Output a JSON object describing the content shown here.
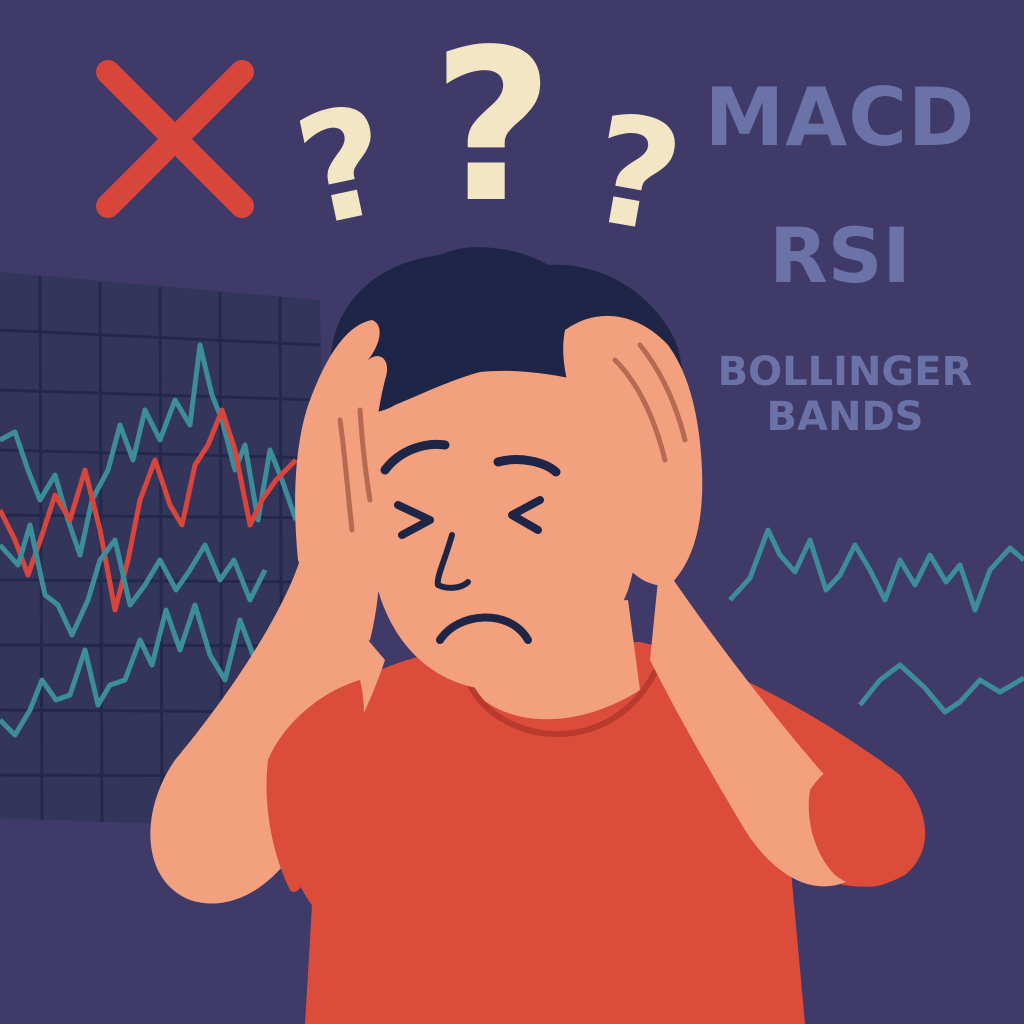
{
  "indicators": {
    "macd": "MACD",
    "rsi": "RSI",
    "bollinger_line1": "BOLLINGER",
    "bollinger_line2": "BANDS"
  },
  "question_marks": [
    "?",
    "?",
    "?"
  ],
  "colors": {
    "background": "#3f3a68",
    "indicator_text": "#6b72a8",
    "question_mark": "#f3e6c4",
    "x_mark": "#d8453b",
    "chart_teal": "#3d8c99",
    "chart_red": "#d8453b",
    "grid_bg": "#34355a",
    "grid_line": "#24284a",
    "skin": "#f2a07e",
    "hair": "#1e2546",
    "shirt": "#db4c3a",
    "outline": "#1e2546"
  },
  "icons": {
    "wrong_mark": "x-mark-icon",
    "confusion": "question-mark-icon"
  }
}
